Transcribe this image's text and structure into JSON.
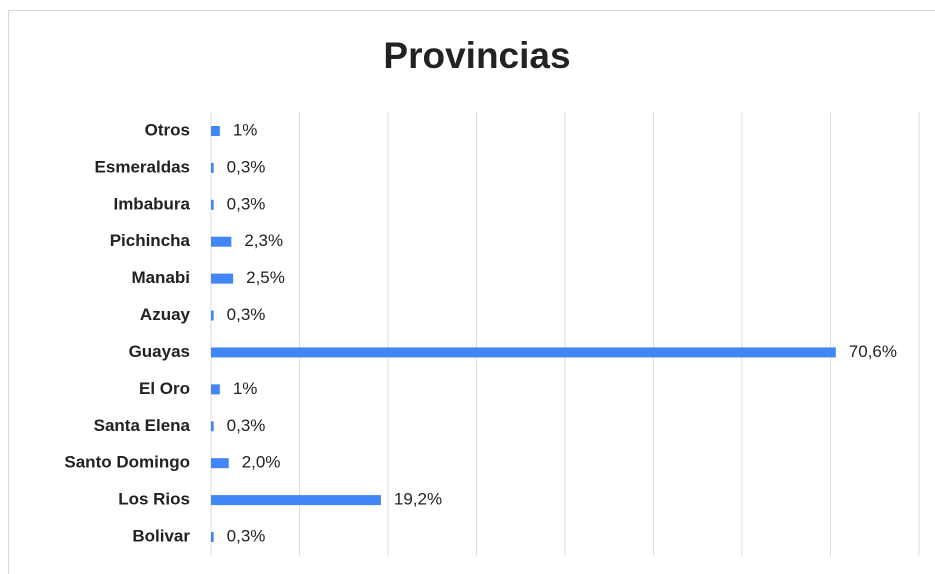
{
  "chart_data": {
    "type": "hbar",
    "title": "Provincias",
    "categories": [
      "Otros",
      "Esmeraldas",
      "Imbabura",
      "Pichincha",
      "Manabi",
      "Azuay",
      "Guayas",
      "El Oro",
      "Santa Elena",
      "Santo Domingo",
      "Los Rios",
      "Bolivar"
    ],
    "values": [
      1,
      0.3,
      0.3,
      2.3,
      2.5,
      0.3,
      70.6,
      1,
      0.3,
      2.0,
      19.2,
      0.3
    ],
    "value_labels": [
      "1%",
      "0,3%",
      "0,3%",
      "2,3%",
      "2,5%",
      "0,3%",
      "70,6%",
      "1%",
      "0,3%",
      "2,0%",
      "19,2%",
      "0,3%"
    ],
    "color": "#4285f4",
    "xlim": [
      0,
      80
    ],
    "xticks": [
      0,
      10,
      20,
      30,
      40,
      50,
      60,
      70,
      80
    ],
    "grid": true
  }
}
